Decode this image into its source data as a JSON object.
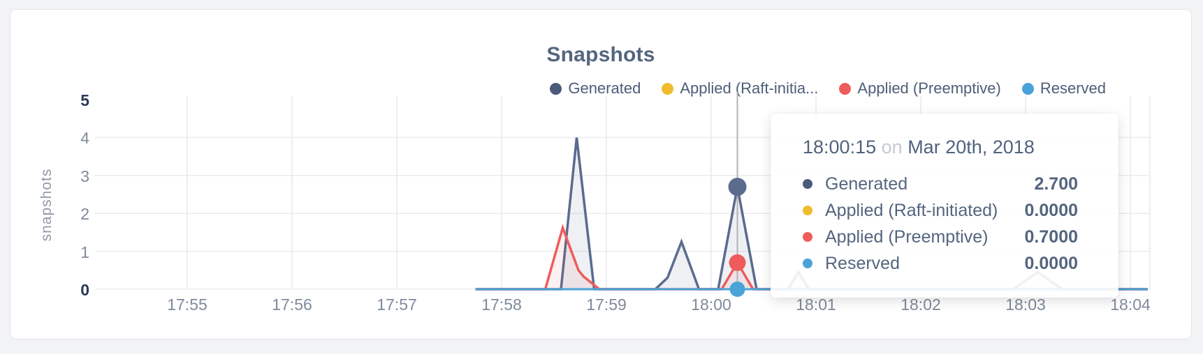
{
  "chart": {
    "title": "Snapshots",
    "y_axis_title": "snapshots",
    "y_ticks": [
      {
        "label": "5",
        "value": 5
      },
      {
        "label": "4",
        "value": 4
      },
      {
        "label": "3",
        "value": 3
      },
      {
        "label": "2",
        "value": 2
      },
      {
        "label": "1",
        "value": 1
      },
      {
        "label": "0",
        "value": 0
      }
    ],
    "x_ticks": [
      "17:55",
      "17:56",
      "17:57",
      "17:58",
      "17:59",
      "18:00",
      "18:01",
      "18:02",
      "18:03",
      "18:04"
    ],
    "legend": [
      {
        "label": "Generated",
        "color": "#4a5a78"
      },
      {
        "label": "Applied (Raft-initia...",
        "color": "#f0bc2f"
      },
      {
        "label": "Applied (Preemptive)",
        "color": "#ee5c5c"
      },
      {
        "label": "Reserved",
        "color": "#4aa3d8"
      }
    ]
  },
  "tooltip": {
    "time": "18:00:15",
    "connector": "on",
    "date": "Mar 20th, 2018",
    "rows": [
      {
        "label": "Generated",
        "color": "#4a5a78",
        "value": "2.700"
      },
      {
        "label": "Applied (Raft-initiated)",
        "color": "#f0bc2f",
        "value": "0.0000"
      },
      {
        "label": "Applied (Preemptive)",
        "color": "#ee5c5c",
        "value": "0.7000"
      },
      {
        "label": "Reserved",
        "color": "#4aa3d8",
        "value": "0.0000"
      }
    ]
  },
  "chart_data": {
    "type": "area",
    "title": "Snapshots",
    "xlabel": "",
    "ylabel": "snapshots",
    "ylim": [
      0,
      5
    ],
    "x_ticks": [
      "17:55",
      "17:56",
      "17:57",
      "17:58",
      "17:59",
      "18:00",
      "18:01",
      "18:02",
      "18:03",
      "18:04"
    ],
    "grid": true,
    "legend_position": "top-right",
    "series": [
      {
        "name": "Generated",
        "color": "#5a6b8e",
        "fill": "rgba(90,107,142,0.10)",
        "points": [
          [
            "17:57:45",
            0
          ],
          [
            "17:58:34",
            0
          ],
          [
            "17:58:43",
            4.0
          ],
          [
            "17:58:53",
            0
          ],
          [
            "17:59:28",
            0
          ],
          [
            "17:59:35",
            0.3
          ],
          [
            "17:59:43",
            1.25
          ],
          [
            "17:59:53",
            0
          ],
          [
            "18:00:04",
            0
          ],
          [
            "18:00:15",
            2.7
          ],
          [
            "18:00:26",
            0
          ],
          [
            "18:00:44",
            0
          ],
          [
            "18:00:50",
            0.45
          ],
          [
            "18:00:56",
            0
          ],
          [
            "18:02:53",
            0
          ],
          [
            "18:03:07",
            0.45
          ],
          [
            "18:03:21",
            0
          ],
          [
            "18:04:10",
            0
          ]
        ]
      },
      {
        "name": "Applied (Raft-initiated)",
        "color": "#f0bc2f",
        "fill": "none",
        "points": [
          [
            "17:57:45",
            0
          ],
          [
            "18:04:10",
            0
          ]
        ]
      },
      {
        "name": "Applied (Preemptive)",
        "color": "#ee5c5c",
        "fill": "rgba(238,92,92,0.09)",
        "points": [
          [
            "17:57:45",
            0
          ],
          [
            "17:58:25",
            0
          ],
          [
            "17:58:35",
            1.62
          ],
          [
            "17:58:44",
            0.5
          ],
          [
            "17:58:47",
            0.33
          ],
          [
            "17:58:56",
            0
          ],
          [
            "18:00:06",
            0
          ],
          [
            "18:00:15",
            0.7
          ],
          [
            "18:00:24",
            0
          ],
          [
            "18:04:10",
            0
          ]
        ]
      },
      {
        "name": "Reserved",
        "color": "#4aa3d8",
        "fill": "none",
        "points": [
          [
            "17:57:45",
            0
          ],
          [
            "18:04:10",
            0
          ]
        ]
      }
    ],
    "hover": {
      "time": "18:00:15",
      "date": "Mar 20th, 2018",
      "values": {
        "Generated": 2.7,
        "Applied (Raft-initiated)": 0.0,
        "Applied (Preemptive)": 0.7,
        "Reserved": 0.0
      }
    }
  }
}
